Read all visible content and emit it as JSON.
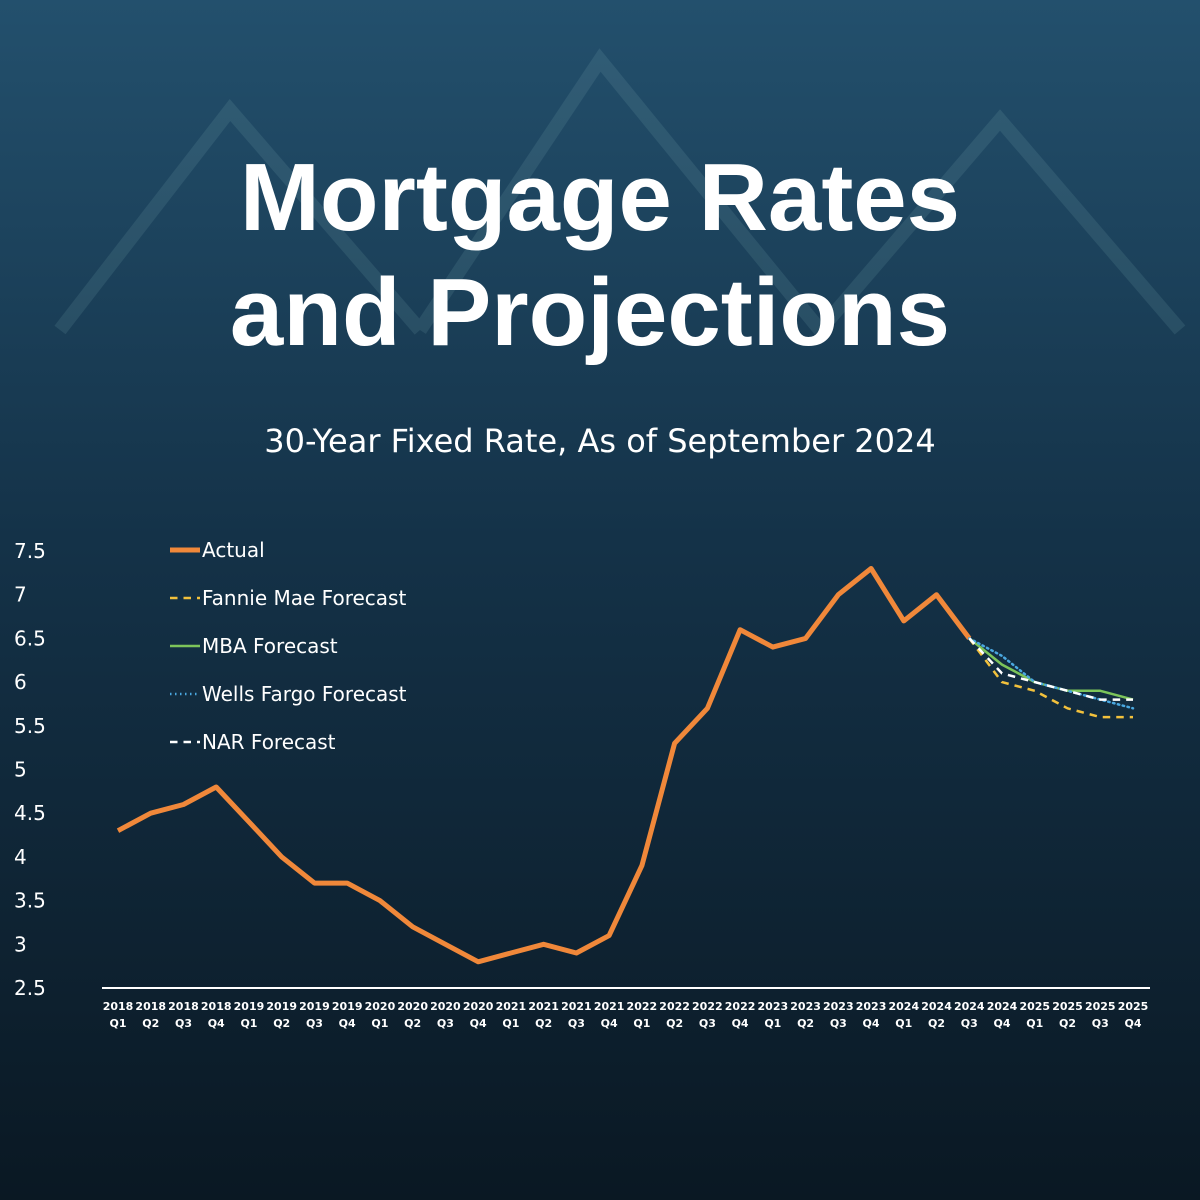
{
  "chart_data": {
    "type": "line",
    "title": [
      "Mortgage Rates",
      "and Projections"
    ],
    "subtitle": "30-Year Fixed Rate, As of September 2024",
    "categories": [
      "2018 Q1",
      "2018 Q2",
      "2018 Q3",
      "2018 Q4",
      "2019 Q1",
      "2019 Q2",
      "2019 Q3",
      "2019 Q4",
      "2020 Q1",
      "2020 Q2",
      "2020 Q3",
      "2020 Q4",
      "2021 Q1",
      "2021 Q2",
      "2021 Q3",
      "2021 Q4",
      "2022 Q1",
      "2022 Q2",
      "2022 Q3",
      "2022 Q4",
      "2023 Q1",
      "2023 Q2",
      "2023 Q3",
      "2023 Q4",
      "2024 Q1",
      "2024 Q2",
      "2024 Q3",
      "2024 Q4",
      "2025 Q1",
      "2025 Q2",
      "2025 Q3",
      "2025 Q4"
    ],
    "series": [
      {
        "name": "Actual",
        "color": "#f0883a",
        "style": "solid",
        "width": 5,
        "values": [
          4.3,
          4.5,
          4.6,
          4.8,
          4.4,
          4.0,
          3.7,
          3.7,
          3.5,
          3.2,
          3.0,
          2.8,
          2.9,
          3.0,
          2.9,
          3.1,
          3.9,
          5.3,
          5.7,
          6.6,
          6.4,
          6.5,
          7.0,
          7.3,
          6.7,
          7.0,
          6.5,
          null,
          null,
          null,
          null,
          null
        ]
      },
      {
        "name": "Fannie Mae Forecast",
        "color": "#f2c13c",
        "style": "dashed",
        "width": 2.5,
        "values": [
          null,
          null,
          null,
          null,
          null,
          null,
          null,
          null,
          null,
          null,
          null,
          null,
          null,
          null,
          null,
          null,
          null,
          null,
          null,
          null,
          null,
          null,
          null,
          null,
          null,
          null,
          6.5,
          6.0,
          5.9,
          5.7,
          5.6,
          5.6
        ]
      },
      {
        "name": "MBA Forecast",
        "color": "#7cc45a",
        "style": "solid",
        "width": 2.5,
        "values": [
          null,
          null,
          null,
          null,
          null,
          null,
          null,
          null,
          null,
          null,
          null,
          null,
          null,
          null,
          null,
          null,
          null,
          null,
          null,
          null,
          null,
          null,
          null,
          null,
          null,
          null,
          6.5,
          6.2,
          6.0,
          5.9,
          5.9,
          5.8
        ]
      },
      {
        "name": "Wells Fargo Forecast",
        "color": "#4aa8e0",
        "style": "dotted",
        "width": 2.5,
        "values": [
          null,
          null,
          null,
          null,
          null,
          null,
          null,
          null,
          null,
          null,
          null,
          null,
          null,
          null,
          null,
          null,
          null,
          null,
          null,
          null,
          null,
          null,
          null,
          null,
          null,
          null,
          6.5,
          6.3,
          6.0,
          5.9,
          5.8,
          5.7
        ]
      },
      {
        "name": "NAR Forecast",
        "color": "#ffffff",
        "style": "dashed",
        "width": 2.5,
        "values": [
          null,
          null,
          null,
          null,
          null,
          null,
          null,
          null,
          null,
          null,
          null,
          null,
          null,
          null,
          null,
          null,
          null,
          null,
          null,
          null,
          null,
          null,
          null,
          null,
          null,
          null,
          6.5,
          6.1,
          6.0,
          5.9,
          5.8,
          5.8
        ]
      }
    ],
    "ylim": [
      2.5,
      7.5
    ],
    "yticks": [
      2.5,
      3,
      3.5,
      4,
      4.5,
      5,
      5.5,
      6,
      6.5,
      7,
      7.5
    ],
    "grid": false,
    "legend": "top-left"
  }
}
